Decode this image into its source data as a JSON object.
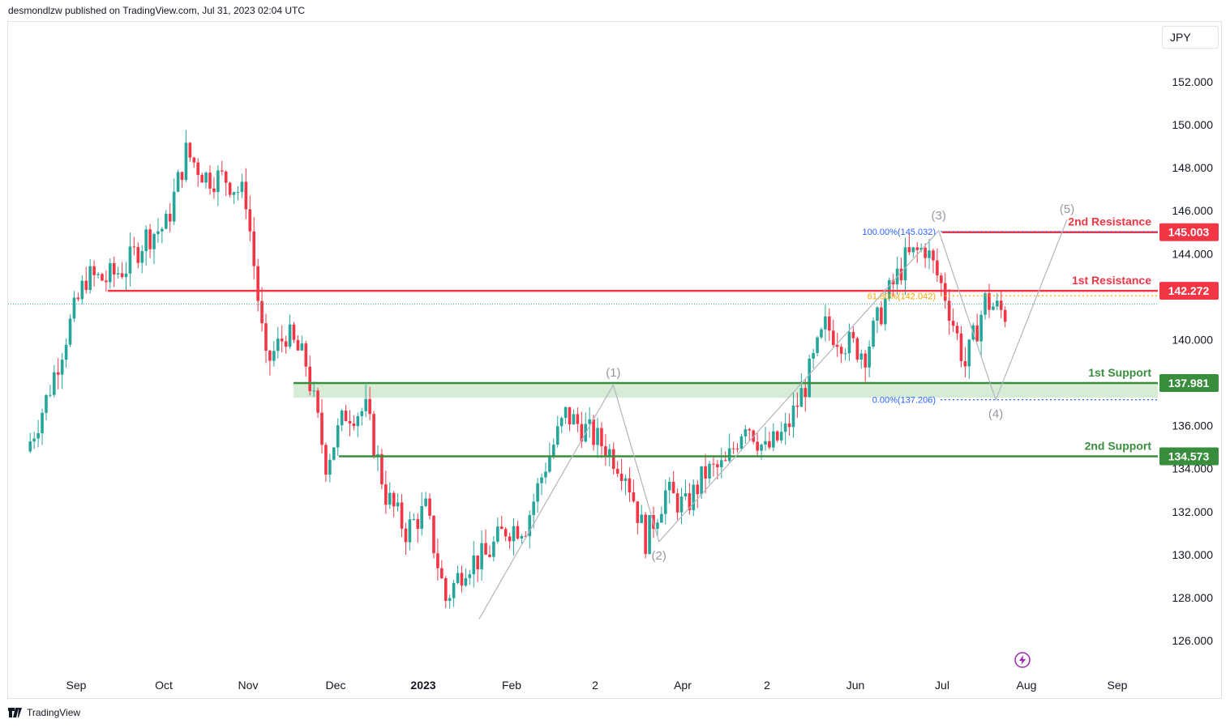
{
  "header": {
    "publisher": "desmondlzw published on TradingView.com, Jul 31, 2023 02:04 UTC"
  },
  "currency": "JPY",
  "footer": {
    "brand": "TradingView"
  },
  "colors": {
    "up": "#26a69a",
    "down": "#f23645",
    "resistance": "#f23645",
    "support": "#388e3c",
    "fib_top": "#2962ff",
    "fib_mid": "#f7a600",
    "wave": "#b2b5be",
    "zone": "#c8e6c9"
  },
  "chart_data": {
    "type": "candlestick",
    "symbol_currency": "JPY",
    "y_axis": {
      "ticks": [
        "152.000",
        "150.000",
        "148.000",
        "146.000",
        "144.000",
        "140.000",
        "138.000",
        "136.000",
        "134.000",
        "132.000",
        "130.000",
        "128.000",
        "126.000"
      ],
      "ylim": [
        124.8,
        153.0
      ]
    },
    "x_axis": {
      "ticks": [
        "Sep",
        "Oct",
        "Nov",
        "Dec",
        "2023",
        "Feb",
        "2",
        "Apr",
        "2",
        "Jun",
        "Jul",
        "Aug",
        "Sep"
      ]
    },
    "levels": [
      {
        "name": "2nd Resistance",
        "value": 145.003,
        "tag": "145.003",
        "kind": "resistance"
      },
      {
        "name": "1st Resistance",
        "value": 142.272,
        "tag": "142.272",
        "kind": "resistance"
      },
      {
        "name": "1st Support",
        "value": 137.981,
        "tag": "137.981",
        "kind": "support"
      },
      {
        "name": "2nd Support",
        "value": 134.573,
        "tag": "134.573",
        "kind": "support"
      }
    ],
    "fibonacci": [
      {
        "label": "100.00%(145.032)",
        "value": 145.032
      },
      {
        "label": "61.80%(142.042)",
        "value": 142.042
      },
      {
        "label": "0.00%(137.206)",
        "value": 137.206
      }
    ],
    "waves": [
      {
        "label": "(1)",
        "date": "2023-03-08",
        "value": 137.9
      },
      {
        "label": "(2)",
        "date": "2023-03-24",
        "value": 130.6
      },
      {
        "label": "(3)",
        "date": "2023-06-30",
        "value": 145.07
      },
      {
        "label": "(4)",
        "date": "2023-07-20",
        "value": 137.2
      },
      {
        "label": "(5)",
        "date": "2023-08-14",
        "value": 145.6
      }
    ],
    "current_price_line": 141.65,
    "series_ohlc_close": [
      {
        "date": "2022-08-15",
        "c": 134.8
      },
      {
        "date": "2022-08-22",
        "c": 137.2
      },
      {
        "date": "2022-08-29",
        "c": 140.2
      },
      {
        "date": "2022-09-05",
        "c": 142.9
      },
      {
        "date": "2022-09-12",
        "c": 142.8
      },
      {
        "date": "2022-09-19",
        "c": 143.4
      },
      {
        "date": "2022-09-26",
        "c": 144.8
      },
      {
        "date": "2022-10-03",
        "c": 145.3
      },
      {
        "date": "2022-10-10",
        "c": 148.7
      },
      {
        "date": "2022-10-17",
        "c": 147.6
      },
      {
        "date": "2022-10-24",
        "c": 147.5
      },
      {
        "date": "2022-10-31",
        "c": 146.6
      },
      {
        "date": "2022-11-07",
        "c": 138.8
      },
      {
        "date": "2022-11-14",
        "c": 140.3
      },
      {
        "date": "2022-11-21",
        "c": 138.9
      },
      {
        "date": "2022-11-28",
        "c": 134.3
      },
      {
        "date": "2022-12-05",
        "c": 136.6
      },
      {
        "date": "2022-12-12",
        "c": 136.7
      },
      {
        "date": "2022-12-19",
        "c": 132.8
      },
      {
        "date": "2022-12-26",
        "c": 131.1
      },
      {
        "date": "2023-01-02",
        "c": 132.1
      },
      {
        "date": "2023-01-09",
        "c": 127.9
      },
      {
        "date": "2023-01-16",
        "c": 129.6
      },
      {
        "date": "2023-01-23",
        "c": 129.9
      },
      {
        "date": "2023-01-30",
        "c": 131.2
      },
      {
        "date": "2023-02-06",
        "c": 131.4
      },
      {
        "date": "2023-02-13",
        "c": 134.2
      },
      {
        "date": "2023-02-20",
        "c": 136.5
      },
      {
        "date": "2023-02-27",
        "c": 135.8
      },
      {
        "date": "2023-03-06",
        "c": 135.0
      },
      {
        "date": "2023-03-13",
        "c": 133.9
      },
      {
        "date": "2023-03-20",
        "c": 130.7
      },
      {
        "date": "2023-03-27",
        "c": 132.9
      },
      {
        "date": "2023-04-03",
        "c": 132.2
      },
      {
        "date": "2023-04-10",
        "c": 133.8
      },
      {
        "date": "2023-04-17",
        "c": 134.1
      },
      {
        "date": "2023-04-24",
        "c": 136.3
      },
      {
        "date": "2023-05-01",
        "c": 134.8
      },
      {
        "date": "2023-05-08",
        "c": 135.7
      },
      {
        "date": "2023-05-15",
        "c": 137.9
      },
      {
        "date": "2023-05-22",
        "c": 140.6
      },
      {
        "date": "2023-05-29",
        "c": 139.9
      },
      {
        "date": "2023-06-05",
        "c": 139.4
      },
      {
        "date": "2023-06-12",
        "c": 141.8
      },
      {
        "date": "2023-06-19",
        "c": 143.7
      },
      {
        "date": "2023-06-26",
        "c": 144.3
      },
      {
        "date": "2023-07-03",
        "c": 142.1
      },
      {
        "date": "2023-07-10",
        "c": 138.8
      },
      {
        "date": "2023-07-17",
        "c": 141.8
      },
      {
        "date": "2023-07-24",
        "c": 141.2
      }
    ]
  }
}
